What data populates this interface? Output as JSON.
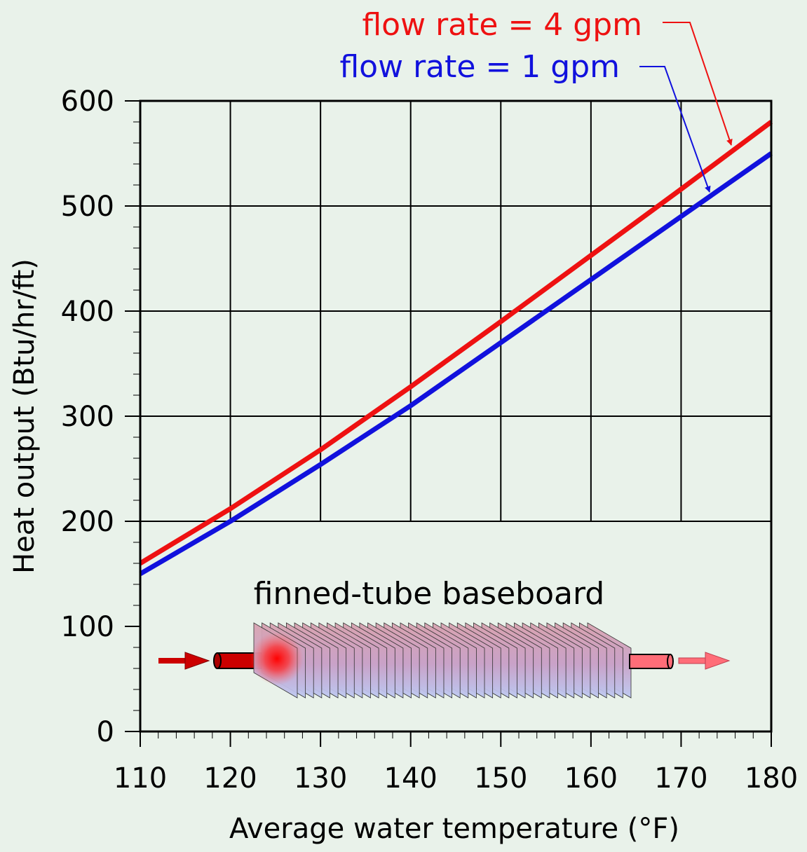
{
  "chart_data": {
    "type": "line",
    "title": "",
    "xlabel": "Average water temperature (°F)",
    "ylabel": "Heat output (Btu/hr/ft)",
    "xlim": [
      110,
      180
    ],
    "ylim": [
      0,
      600
    ],
    "x_ticks": [
      "110",
      "120",
      "130",
      "140",
      "150",
      "160",
      "170",
      "180"
    ],
    "y_ticks": [
      "0",
      "100",
      "200",
      "300",
      "400",
      "500",
      "600"
    ],
    "grid": "major gridlines above 200",
    "series": [
      {
        "name": "flow rate = 4 gpm",
        "color": "#ee1111",
        "x": [
          110,
          120,
          130,
          140,
          150,
          160,
          170,
          180
        ],
        "y": [
          160,
          212,
          268,
          328,
          390,
          453,
          516,
          580
        ]
      },
      {
        "name": "flow rate = 1 gpm",
        "color": "#1111dd",
        "x": [
          110,
          120,
          130,
          140,
          150,
          160,
          170,
          180
        ],
        "y": [
          150,
          200,
          254,
          310,
          370,
          430,
          490,
          550
        ]
      }
    ],
    "annotations": [
      {
        "text": "finned-tube baseboard"
      }
    ]
  }
}
